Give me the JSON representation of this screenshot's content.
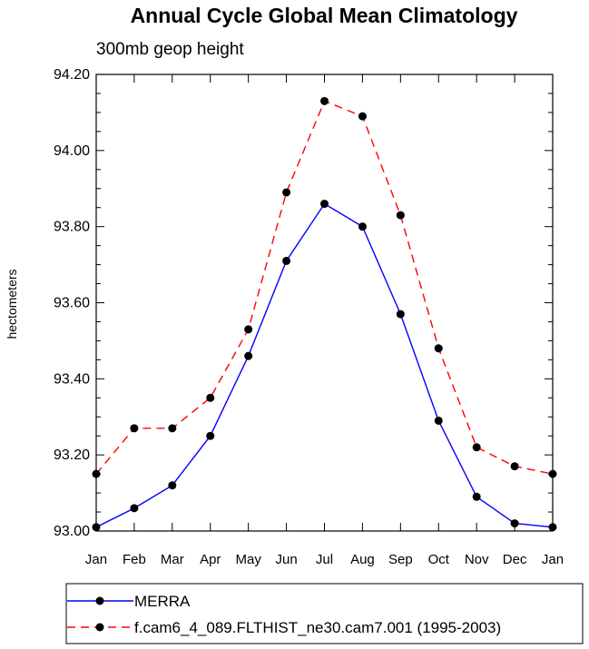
{
  "chart_data": {
    "type": "line",
    "title": "Annual Cycle Global Mean Climatology",
    "subtitle": "300mb geop height",
    "xlabel": "",
    "ylabel": "hectometers",
    "categories": [
      "Jan",
      "Feb",
      "Mar",
      "Apr",
      "May",
      "Jun",
      "Jul",
      "Aug",
      "Sep",
      "Oct",
      "Nov",
      "Dec",
      "Jan"
    ],
    "ylim": [
      93.0,
      94.2
    ],
    "yticks": [
      "93.00",
      "93.20",
      "93.40",
      "93.60",
      "93.80",
      "94.00",
      "94.20"
    ],
    "grid": false,
    "legend_position": "bottom",
    "series": [
      {
        "name": "MERRA",
        "color": "#0000ff",
        "dash": "solid",
        "values": [
          93.01,
          93.06,
          93.12,
          93.25,
          93.46,
          93.71,
          93.86,
          93.8,
          93.57,
          93.29,
          93.09,
          93.02,
          93.01
        ]
      },
      {
        "name": "f.cam6_4_089.FLTHIST_ne30.cam7.001 (1995-2003)",
        "color": "#ff0000",
        "dash": "dashed",
        "values": [
          93.15,
          93.27,
          93.27,
          93.35,
          93.53,
          93.89,
          94.13,
          94.09,
          93.83,
          93.48,
          93.22,
          93.17,
          93.15
        ]
      }
    ]
  }
}
